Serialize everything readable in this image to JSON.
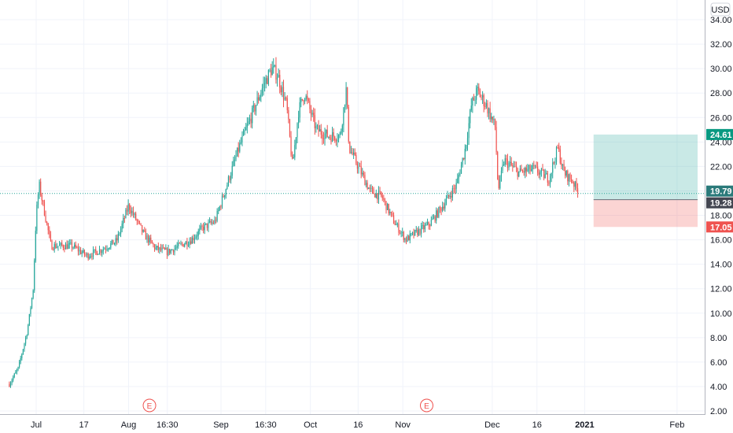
{
  "chart_data": {
    "type": "candlestick",
    "currency": "USD",
    "y_ticks": [
      "2.00",
      "4.00",
      "6.00",
      "8.00",
      "10.00",
      "12.00",
      "14.00",
      "16.00",
      "18.00",
      "20.00",
      "22.00",
      "24.00",
      "26.00",
      "28.00",
      "30.00",
      "32.00",
      "34.00"
    ],
    "ylim": [
      1.5,
      34.5
    ],
    "x_ticks": [
      {
        "label": "Jul",
        "day": 8
      },
      {
        "label": "17",
        "day": 24
      },
      {
        "label": "Aug",
        "day": 39
      },
      {
        "label": "16:30",
        "day": 52
      },
      {
        "label": "Sep",
        "day": 70
      },
      {
        "label": "16:30",
        "day": 85
      },
      {
        "label": "Oct",
        "day": 100
      },
      {
        "label": "16",
        "day": 116
      },
      {
        "label": "Nov",
        "day": 131
      },
      {
        "label": "Dec",
        "day": 161
      },
      {
        "label": "16",
        "day": 176
      },
      {
        "label": "2021",
        "day": 192
      },
      {
        "label": "Feb",
        "day": 223
      }
    ],
    "price_labels": [
      {
        "value": "24.61",
        "y": 24.61,
        "bg": "#089981",
        "fg": "#ffffff"
      },
      {
        "value": "19.79",
        "y": 19.79,
        "bg": "#2a7a7a",
        "fg": "#ffffff"
      },
      {
        "value": "19.28",
        "y": 19.28,
        "bg": "#434651",
        "fg": "#ffffff"
      },
      {
        "value": "17.05",
        "y": 17.05,
        "bg": "#ef5350",
        "fg": "#ffffff"
      }
    ],
    "last_price": 19.79,
    "position": {
      "entry": 19.28,
      "target": 24.61,
      "stop": 17.05,
      "start_day": 195,
      "end_day": 230
    },
    "events": [
      {
        "label": "E",
        "day": 46
      },
      {
        "label": "E",
        "day": 139
      }
    ],
    "keypoints": [
      [
        -1,
        4.2
      ],
      [
        2,
        5.5
      ],
      [
        5,
        8.5
      ],
      [
        7,
        12
      ],
      [
        8,
        18
      ],
      [
        9,
        20.5
      ],
      [
        11,
        18
      ],
      [
        13,
        15.5
      ],
      [
        20,
        15.5
      ],
      [
        25,
        14.7
      ],
      [
        30,
        15.2
      ],
      [
        35,
        15.9
      ],
      [
        39,
        18.8
      ],
      [
        44,
        16.5
      ],
      [
        48,
        15.3
      ],
      [
        52,
        15.0
      ],
      [
        56,
        15.5
      ],
      [
        60,
        16.0
      ],
      [
        64,
        17.0
      ],
      [
        68,
        17.5
      ],
      [
        72,
        20.5
      ],
      [
        76,
        23.5
      ],
      [
        80,
        26
      ],
      [
        84,
        28.5
      ],
      [
        87,
        30.0
      ],
      [
        89,
        29.5
      ],
      [
        92,
        27
      ],
      [
        94,
        22
      ],
      [
        96,
        26.5
      ],
      [
        98,
        28
      ],
      [
        102,
        25
      ],
      [
        106,
        24.5
      ],
      [
        110,
        24.5
      ],
      [
        112,
        28.3
      ],
      [
        113,
        23.5
      ],
      [
        116,
        22
      ],
      [
        120,
        20
      ],
      [
        124,
        19.5
      ],
      [
        128,
        17.5
      ],
      [
        132,
        16.0
      ],
      [
        135,
        16.5
      ],
      [
        140,
        17.3
      ],
      [
        145,
        19.0
      ],
      [
        149,
        20.5
      ],
      [
        152,
        23.5
      ],
      [
        154,
        27
      ],
      [
        156,
        28.2
      ],
      [
        159,
        27
      ],
      [
        162,
        25.2
      ],
      [
        163,
        20.0
      ],
      [
        165,
        22.5
      ],
      [
        170,
        21.5
      ],
      [
        175,
        21.8
      ],
      [
        180,
        21.0
      ],
      [
        183,
        23.5
      ],
      [
        185,
        21.5
      ],
      [
        188,
        20.8
      ],
      [
        190,
        19.79
      ]
    ]
  }
}
